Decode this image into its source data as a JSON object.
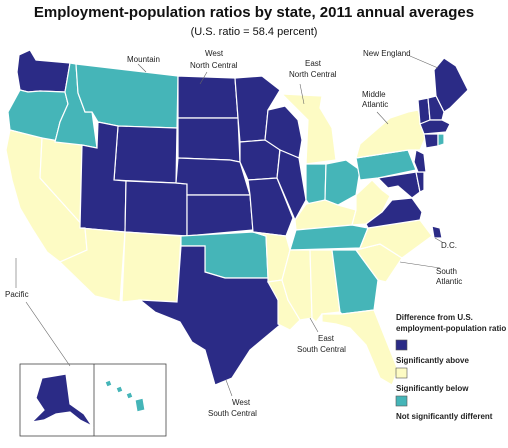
{
  "title": "Employment-population ratios by state, 2011 annual averages",
  "subtitle": "(U.S. ratio = 58.4 percent)",
  "colors": {
    "above": "#2b2b86",
    "below": "#45b5b8",
    "not_different": "#fdfbc4",
    "outline": "#ffffff"
  },
  "regions": {
    "mountain": "Mountain",
    "west_north_central_1": "West",
    "west_north_central_2": "North Central",
    "east_north_central_1": "East",
    "east_north_central_2": "North Central",
    "new_england": "New England",
    "middle_atlantic_1": "Middle",
    "middle_atlantic_2": "Atlantic",
    "dc": "D.C.",
    "south_atlantic_1": "South",
    "south_atlantic_2": "Atlantic",
    "pacific": "Pacific",
    "east_south_central_1": "East",
    "east_south_central_2": "South Central",
    "west_south_central_1": "West",
    "west_south_central_2": "South Central"
  },
  "legend": {
    "title_1": "Difference from U.S.",
    "title_2": "employment-population ratio",
    "items": [
      {
        "key": "above",
        "label": "Significantly above"
      },
      {
        "key": "not_different",
        "label": "Significantly below"
      },
      {
        "key": "below",
        "label": "Not significantly different"
      }
    ]
  },
  "states": {
    "WA": "above",
    "OR": "below",
    "CA": "not_different",
    "NV": "not_different",
    "ID": "below",
    "MT": "below",
    "WY": "above",
    "UT": "above",
    "CO": "above",
    "AZ": "not_different",
    "NM": "not_different",
    "ND": "above",
    "SD": "above",
    "NE": "above",
    "KS": "above",
    "MN": "above",
    "IA": "above",
    "MO": "above",
    "WI": "above",
    "IL": "above",
    "MI": "not_different",
    "IN": "below",
    "OH": "below",
    "TX": "above",
    "OK": "below",
    "AR": "not_different",
    "LA": "not_different",
    "KY": "not_different",
    "TN": "below",
    "MS": "not_different",
    "AL": "not_different",
    "GA": "below",
    "FL": "not_different",
    "SC": "not_different",
    "NC": "not_different",
    "VA": "above",
    "WV": "not_different",
    "MD": "above",
    "DE": "above",
    "DC": "above",
    "PA": "below",
    "NY": "not_different",
    "NJ": "above",
    "ME": "above",
    "NH": "above",
    "VT": "above",
    "MA": "above",
    "CT": "above",
    "RI": "below",
    "AK": "above",
    "HI": "below"
  }
}
